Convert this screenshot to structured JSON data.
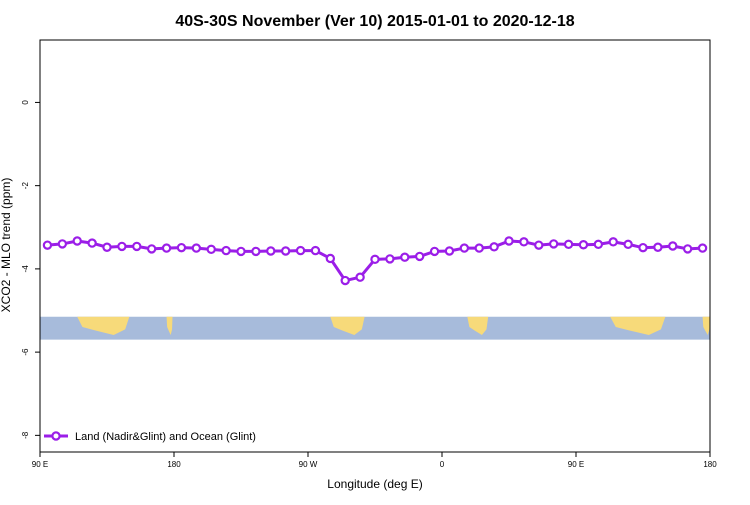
{
  "chart_data": {
    "type": "line",
    "title": "40S-30S November (Ver 10)   2015-01-01 to 2020-12-18",
    "xlabel": "Longitude (deg E)",
    "ylabel": "XCO2 - MLO trend (ppm)",
    "x_ticks": [
      {
        "value": -90,
        "label": "90 E"
      },
      {
        "value": 0,
        "label": "180"
      },
      {
        "value": 90,
        "label": "90 W"
      },
      {
        "value": 180,
        "label": "0"
      },
      {
        "value": 270,
        "label": "90 E"
      },
      {
        "value": 360,
        "label": "180"
      }
    ],
    "y_ticks": [
      {
        "value": 0,
        "label": "0"
      },
      {
        "value": -2,
        "label": "-2"
      },
      {
        "value": -4,
        "label": "-4"
      },
      {
        "value": -6,
        "label": "-6"
      },
      {
        "value": -8,
        "label": "-8"
      }
    ],
    "xlim": [
      -90,
      360
    ],
    "ylim": [
      -8.4,
      1.5
    ],
    "grid": false,
    "legend_position": "bottom-left",
    "series": [
      {
        "name": "Land (Nadir&Glint) and Ocean (Glint)",
        "color": "#9b1ee8",
        "x": [
          -85,
          -75,
          -65,
          -55,
          -45,
          -35,
          -25,
          -15,
          -5,
          5,
          15,
          25,
          35,
          45,
          55,
          65,
          75,
          85,
          95,
          105,
          115,
          125,
          135,
          145,
          155,
          165,
          175,
          185,
          195,
          205,
          215,
          225,
          235,
          245,
          255,
          265,
          275,
          285,
          295,
          305,
          315,
          325,
          335,
          345,
          355
        ],
        "y": [
          -3.43,
          -3.4,
          -3.33,
          -3.38,
          -3.48,
          -3.46,
          -3.46,
          -3.52,
          -3.5,
          -3.49,
          -3.5,
          -3.53,
          -3.56,
          -3.58,
          -3.58,
          -3.57,
          -3.57,
          -3.56,
          -3.56,
          -3.75,
          -4.28,
          -4.2,
          -3.77,
          -3.76,
          -3.72,
          -3.7,
          -3.58,
          -3.57,
          -3.5,
          -3.5,
          -3.47,
          -3.33,
          -3.35,
          -3.43,
          -3.4,
          -3.41,
          -3.42,
          -3.41,
          -3.35,
          -3.41,
          -3.49,
          -3.48,
          -3.45,
          -3.52,
          -3.5
        ]
      }
    ],
    "map_strip": {
      "y_range": [
        -5.7,
        -5.15
      ],
      "ocean_color": "#a7bbdb",
      "land_color": "#f7da7a",
      "land_segments": [
        {
          "name": "australia-west",
          "x_start": -65,
          "x_end": -30
        },
        {
          "name": "new-zealand",
          "x_start": -5,
          "x_end": -1
        },
        {
          "name": "south-america",
          "x_start": 105,
          "x_end": 128
        },
        {
          "name": "africa",
          "x_start": 197,
          "x_end": 211
        },
        {
          "name": "australia-east",
          "x_start": 293,
          "x_end": 330
        },
        {
          "name": "new-zealand-east",
          "x_start": 355,
          "x_end": 360
        }
      ]
    }
  }
}
